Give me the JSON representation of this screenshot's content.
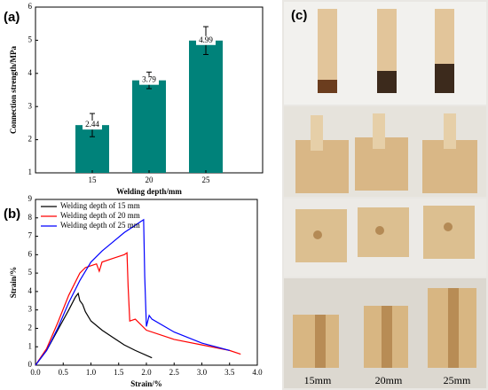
{
  "panel_labels": [
    "(a)",
    "(b)",
    "(c)"
  ],
  "photo_labels": [
    "15mm",
    "20mm",
    "25mm"
  ],
  "chart_data": [
    {
      "type": "bar",
      "categories": [
        "15",
        "20",
        "25"
      ],
      "values": [
        2.44,
        3.79,
        4.99
      ],
      "errors": [
        0.35,
        0.25,
        0.42
      ],
      "color": "#00827a",
      "xlabel": "Welding depth/mm",
      "ylabel": "Connection strength/MPa",
      "ylim": [
        1,
        6
      ],
      "yticks": [
        1,
        2,
        3,
        4,
        5,
        6
      ]
    },
    {
      "type": "line",
      "xlabel": "Strain/%",
      "ylabel": "Strain/%",
      "legend": "upper left",
      "xlim": [
        0,
        4
      ],
      "xticks": [
        {
          "value": 0,
          "label": "0.0"
        },
        {
          "value": 0.5,
          "label": "0.5"
        },
        {
          "value": 1,
          "label": "1.0"
        },
        {
          "value": 1.5,
          "label": "1.5"
        },
        {
          "value": 2,
          "label": "2.0"
        },
        {
          "value": 2.5,
          "label": "2.5"
        },
        {
          "value": 3,
          "label": "3.0"
        },
        {
          "value": 3.5,
          "label": "3.5"
        },
        {
          "value": 4,
          "label": "4.0"
        }
      ],
      "ylim": [
        0,
        9
      ],
      "yticks": [
        0,
        1,
        2,
        3,
        4,
        5,
        6,
        7,
        8,
        9
      ],
      "series": [
        {
          "name": "Welding depth of 15 mm",
          "color": "#000000",
          "x": [
            0,
            0.2,
            0.4,
            0.6,
            0.72,
            0.77,
            0.8,
            0.85,
            0.9,
            1.0,
            1.2,
            1.4,
            1.6,
            1.8,
            2.1
          ],
          "values": [
            0,
            0.8,
            1.9,
            3.0,
            3.7,
            3.9,
            3.5,
            3.3,
            2.9,
            2.4,
            1.9,
            1.5,
            1.1,
            0.8,
            0.4
          ]
        },
        {
          "name": "Welding depth of 20 mm",
          "color": "#ff0000",
          "x": [
            0,
            0.2,
            0.4,
            0.6,
            0.8,
            0.9,
            1.0,
            1.1,
            1.15,
            1.2,
            1.4,
            1.6,
            1.65,
            1.67,
            1.7,
            1.8,
            2.0,
            2.5,
            3.0,
            3.5,
            3.7
          ],
          "values": [
            0,
            0.9,
            2.3,
            3.8,
            5.0,
            5.3,
            5.4,
            5.5,
            5.1,
            5.6,
            5.8,
            6.0,
            6.1,
            4.3,
            2.4,
            2.5,
            1.9,
            1.4,
            1.1,
            0.8,
            0.6
          ]
        },
        {
          "name": "Welding depth of 25 mm",
          "color": "#0000ff",
          "x": [
            0,
            0.2,
            0.4,
            0.6,
            0.8,
            1.0,
            1.2,
            1.4,
            1.6,
            1.8,
            1.9,
            1.95,
            1.97,
            2.0,
            2.05,
            2.1,
            2.5,
            3.0,
            3.5
          ],
          "values": [
            0,
            0.8,
            2.0,
            3.4,
            4.6,
            5.6,
            6.2,
            6.7,
            7.2,
            7.6,
            7.8,
            7.9,
            4.8,
            2.1,
            2.7,
            2.5,
            1.8,
            1.2,
            0.8
          ]
        }
      ]
    }
  ]
}
